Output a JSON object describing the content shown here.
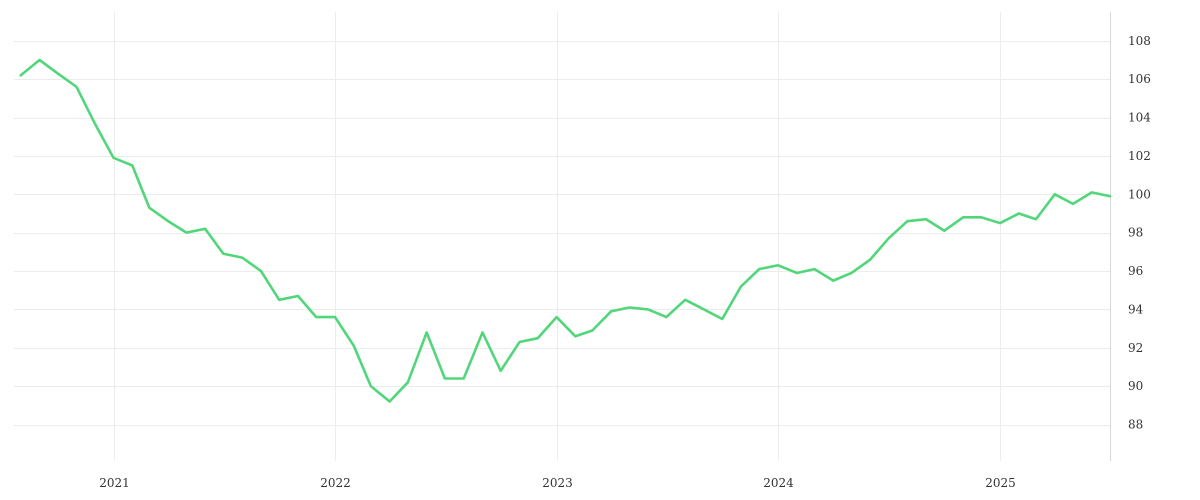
{
  "chart_data": {
    "type": "line",
    "title": "",
    "xlabel": "",
    "ylabel": "",
    "x_range": [
      "2020-07-21",
      "2025-07-01"
    ],
    "x_ticks": [
      "2021",
      "2022",
      "2023",
      "2024",
      "2025"
    ],
    "y_ticks": [
      88,
      90,
      92,
      94,
      96,
      98,
      100,
      102,
      104,
      106,
      108
    ],
    "ylim": [
      86.1,
      109.5
    ],
    "y_axis_side": "right",
    "grid": true,
    "legend": "none",
    "colors": {
      "line": "#52d67a",
      "grid": "#ececec",
      "axis": "#d9d9d9",
      "text": "#333333"
    },
    "series": [
      {
        "x": [
          "2020-08-01",
          "2020-09-01",
          "2020-10-01",
          "2020-11-01",
          "2020-12-01",
          "2021-01-01",
          "2021-02-01",
          "2021-03-01",
          "2021-04-01",
          "2021-05-01",
          "2021-06-01",
          "2021-07-01",
          "2021-08-01",
          "2021-09-01",
          "2021-10-01",
          "2021-11-01",
          "2021-12-01",
          "2022-01-01",
          "2022-02-01",
          "2022-03-01",
          "2022-04-01",
          "2022-05-01",
          "2022-06-01",
          "2022-07-01",
          "2022-08-01",
          "2022-09-01",
          "2022-10-01",
          "2022-11-01",
          "2022-12-01",
          "2023-01-01",
          "2023-02-01",
          "2023-03-01",
          "2023-04-01",
          "2023-05-01",
          "2023-06-01",
          "2023-07-01",
          "2023-08-01",
          "2023-09-01",
          "2023-10-01",
          "2023-11-01",
          "2023-12-01",
          "2024-01-01",
          "2024-02-01",
          "2024-03-01",
          "2024-04-01",
          "2024-05-01",
          "2024-06-01",
          "2024-07-01",
          "2024-08-01",
          "2024-09-01",
          "2024-10-01",
          "2024-11-01",
          "2024-12-01",
          "2025-01-01",
          "2025-02-01",
          "2025-03-01",
          "2025-04-01",
          "2025-05-01",
          "2025-06-01",
          "2025-07-01"
        ],
        "values": [
          106.2,
          107.0,
          106.3,
          105.6,
          103.7,
          101.9,
          101.5,
          99.3,
          98.6,
          98.0,
          98.2,
          96.9,
          96.7,
          96.0,
          94.5,
          94.7,
          93.6,
          93.6,
          92.1,
          90.0,
          89.2,
          90.2,
          92.8,
          90.4,
          90.4,
          92.8,
          90.8,
          92.3,
          92.5,
          93.6,
          92.6,
          92.9,
          93.9,
          94.1,
          94.0,
          93.6,
          94.5,
          94.0,
          93.5,
          95.2,
          96.1,
          96.3,
          95.9,
          96.1,
          95.5,
          95.9,
          96.6,
          97.7,
          98.6,
          98.7,
          98.1,
          98.8,
          98.8,
          98.5,
          99.0,
          98.7,
          100.0,
          99.5,
          100.1,
          99.9
        ]
      }
    ]
  }
}
